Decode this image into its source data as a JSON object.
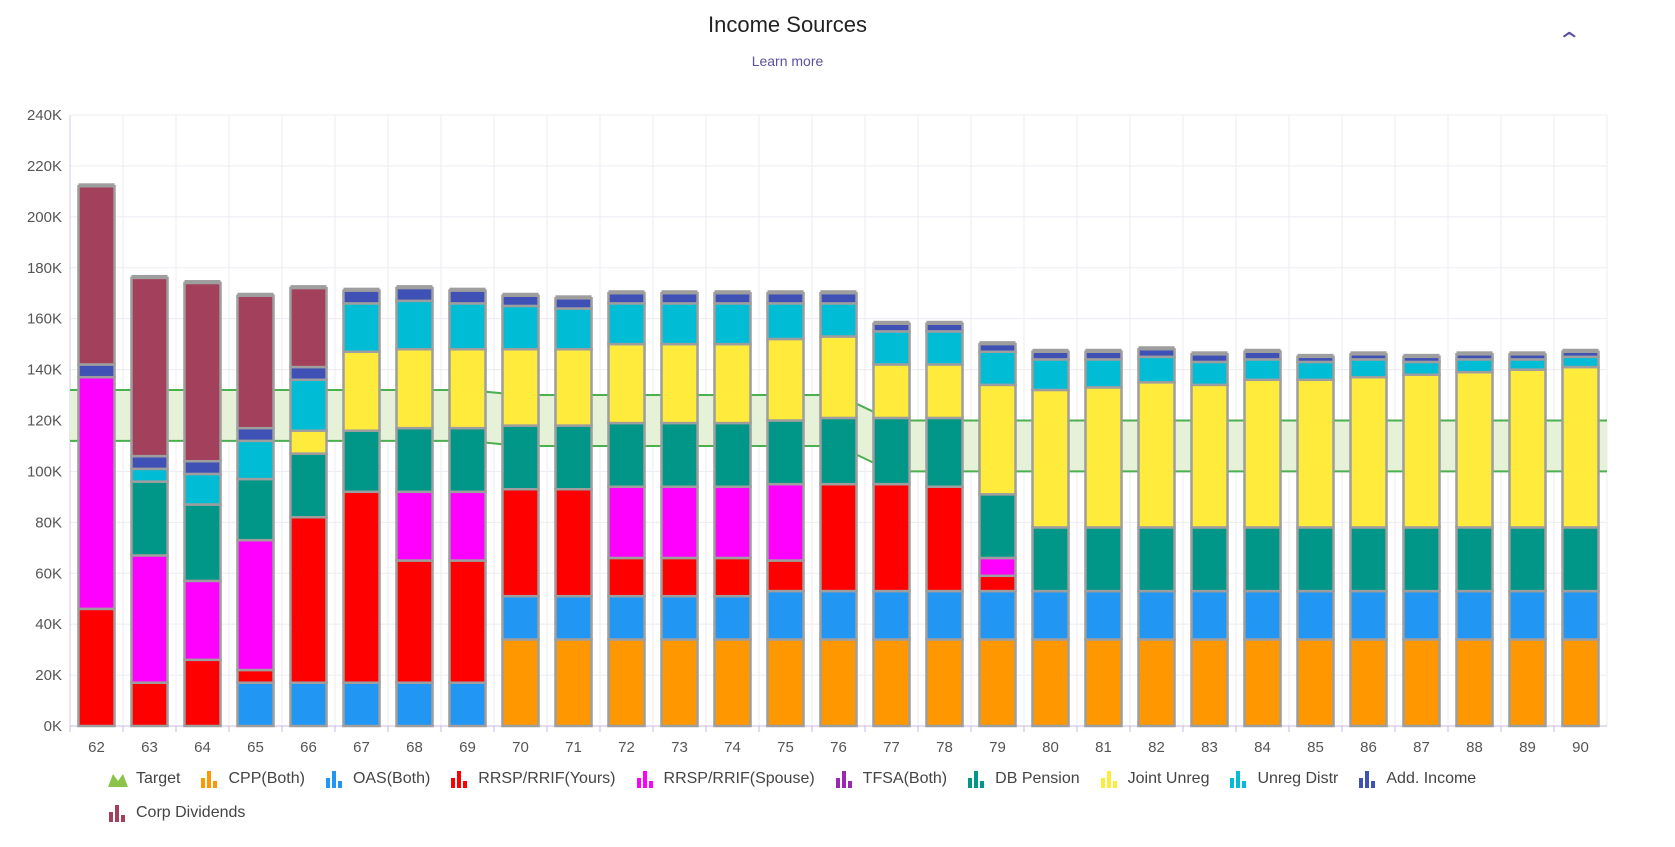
{
  "header": {
    "title": "Income Sources",
    "learn_more": "Learn more",
    "collapse_icon": "chevron-up-icon"
  },
  "chart_data": {
    "type": "bar",
    "stacked": true,
    "title": "Income Sources",
    "xlabel": "",
    "ylabel": "",
    "categories": [
      "62",
      "63",
      "64",
      "65",
      "66",
      "67",
      "68",
      "69",
      "70",
      "71",
      "72",
      "73",
      "74",
      "75",
      "76",
      "77",
      "78",
      "79",
      "80",
      "81",
      "82",
      "83",
      "84",
      "85",
      "86",
      "87",
      "88",
      "89",
      "90"
    ],
    "ylim": [
      0,
      240000
    ],
    "yticks": [
      "0K",
      "20K",
      "40K",
      "60K",
      "80K",
      "100K",
      "120K",
      "140K",
      "160K",
      "180K",
      "200K",
      "220K",
      "240K"
    ],
    "grid": true,
    "legend_position": "bottom",
    "target": {
      "name": "Target",
      "color": "#4caf50",
      "fill": "#e6f2d8",
      "upper": [
        132,
        132,
        132,
        132,
        132,
        132,
        132,
        132,
        130,
        130,
        130,
        130,
        130,
        130,
        130,
        120,
        120,
        120,
        120,
        120,
        120,
        120,
        120,
        120,
        120,
        120,
        120,
        120,
        120
      ],
      "lower": [
        112,
        112,
        112,
        112,
        112,
        112,
        112,
        112,
        110,
        110,
        110,
        110,
        110,
        110,
        110,
        100,
        100,
        100,
        100,
        100,
        100,
        100,
        100,
        100,
        100,
        100,
        100,
        100,
        100
      ]
    },
    "unit": "K",
    "series": [
      {
        "name": "CPP(Both)",
        "color": "#ff9800",
        "values": [
          0,
          0,
          0,
          0,
          0,
          0,
          0,
          0,
          34,
          34,
          34,
          34,
          34,
          34,
          34,
          34,
          34,
          34,
          34,
          34,
          34,
          34,
          34,
          34,
          34,
          34,
          34,
          34,
          34
        ]
      },
      {
        "name": "OAS(Both)",
        "color": "#2196f3",
        "values": [
          0,
          0,
          0,
          17,
          17,
          17,
          17,
          17,
          17,
          17,
          17,
          17,
          17,
          19,
          19,
          19,
          19,
          19,
          19,
          19,
          19,
          19,
          19,
          19,
          19,
          19,
          19,
          19,
          19
        ]
      },
      {
        "name": "RRSP/RRIF(Yours)",
        "color": "#ff0000",
        "values": [
          46,
          17,
          26,
          5,
          65,
          75,
          48,
          48,
          42,
          42,
          15,
          15,
          15,
          12,
          42,
          42,
          41,
          6,
          0,
          0,
          0,
          0,
          0,
          0,
          0,
          0,
          0,
          0,
          0
        ]
      },
      {
        "name": "RRSP/RRIF(Spouse)",
        "color": "#ff00ff",
        "values": [
          91,
          50,
          31,
          51,
          0,
          0,
          27,
          27,
          0,
          0,
          28,
          28,
          28,
          30,
          0,
          0,
          0,
          7,
          0,
          0,
          0,
          0,
          0,
          0,
          0,
          0,
          0,
          0,
          0
        ]
      },
      {
        "name": "TFSA(Both)",
        "color": "#9c27b0",
        "values": [
          0,
          0,
          0,
          0,
          0,
          0,
          0,
          0,
          0,
          0,
          0,
          0,
          0,
          0,
          0,
          0,
          0,
          0,
          0,
          0,
          0,
          0,
          0,
          0,
          0,
          0,
          0,
          0,
          0
        ]
      },
      {
        "name": "DB Pension",
        "color": "#009688",
        "values": [
          0,
          29,
          30,
          24,
          25,
          24,
          25,
          25,
          25,
          25,
          25,
          25,
          25,
          25,
          26,
          26,
          27,
          25,
          25,
          25,
          25,
          25,
          25,
          25,
          25,
          25,
          25,
          25,
          25
        ]
      },
      {
        "name": "Joint Unreg",
        "color": "#ffeb3b",
        "values": [
          0,
          0,
          0,
          0,
          9,
          31,
          31,
          31,
          30,
          30,
          31,
          31,
          31,
          32,
          32,
          21,
          21,
          43,
          54,
          55,
          57,
          56,
          58,
          58,
          59,
          60,
          61,
          62,
          63
        ]
      },
      {
        "name": "Unreg Distr",
        "color": "#00bcd4",
        "values": [
          0,
          5,
          12,
          15,
          20,
          19,
          19,
          18,
          17,
          16,
          16,
          16,
          16,
          14,
          13,
          13,
          13,
          13,
          12,
          11,
          10,
          9,
          8,
          7,
          7,
          5,
          5,
          4,
          4
        ]
      },
      {
        "name": "Add. Income",
        "color": "#3f51b5",
        "values": [
          5,
          5,
          5,
          5,
          5,
          5,
          5,
          5,
          4,
          4,
          4,
          4,
          4,
          4,
          4,
          3,
          3,
          3,
          3,
          3,
          3,
          3,
          3,
          2,
          2,
          2,
          2,
          2,
          2
        ]
      },
      {
        "name": "Corp Dividends",
        "color": "#a3405b",
        "values": [
          70,
          70,
          70,
          52,
          31,
          0,
          0,
          0,
          0,
          0,
          0,
          0,
          0,
          0,
          0,
          0,
          0,
          0,
          0,
          0,
          0,
          0,
          0,
          0,
          0,
          0,
          0,
          0,
          0
        ]
      }
    ]
  }
}
